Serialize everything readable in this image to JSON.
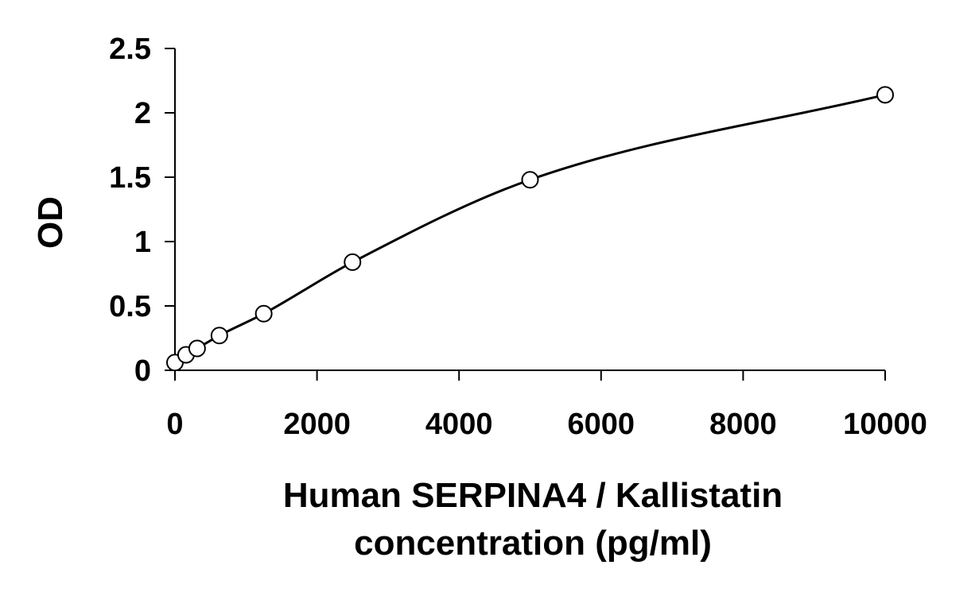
{
  "chart_data": {
    "type": "scatter",
    "title": "",
    "xlabel": [
      "Human SERPINA4 / Kallistatin",
      "concentration (pg/ml)"
    ],
    "ylabel": "OD",
    "xlim": [
      0,
      10000
    ],
    "ylim": [
      0,
      2.5
    ],
    "x_ticks": [
      {
        "value": 0,
        "label": "0"
      },
      {
        "value": 2000,
        "label": "2000"
      },
      {
        "value": 4000,
        "label": "4000"
      },
      {
        "value": 6000,
        "label": "6000"
      },
      {
        "value": 8000,
        "label": "8000"
      },
      {
        "value": 10000,
        "label": "10000"
      }
    ],
    "y_ticks": [
      {
        "value": 0,
        "label": "0"
      },
      {
        "value": 0.5,
        "label": "0.5"
      },
      {
        "value": 1,
        "label": "1"
      },
      {
        "value": 1.5,
        "label": "1.5"
      },
      {
        "value": 2,
        "label": "2"
      },
      {
        "value": 2.5,
        "label": "2.5"
      }
    ],
    "grid": false,
    "legend": "none",
    "series": [
      {
        "marker": "open-circle",
        "fit": "smooth-curve",
        "x": [
          0,
          156,
          312,
          625,
          1250,
          2500,
          5000,
          10000
        ],
        "y": [
          0.06,
          0.12,
          0.17,
          0.27,
          0.44,
          0.84,
          1.48,
          2.14
        ]
      }
    ],
    "colors": {
      "marks": "#000000",
      "background": "#ffffff"
    }
  }
}
